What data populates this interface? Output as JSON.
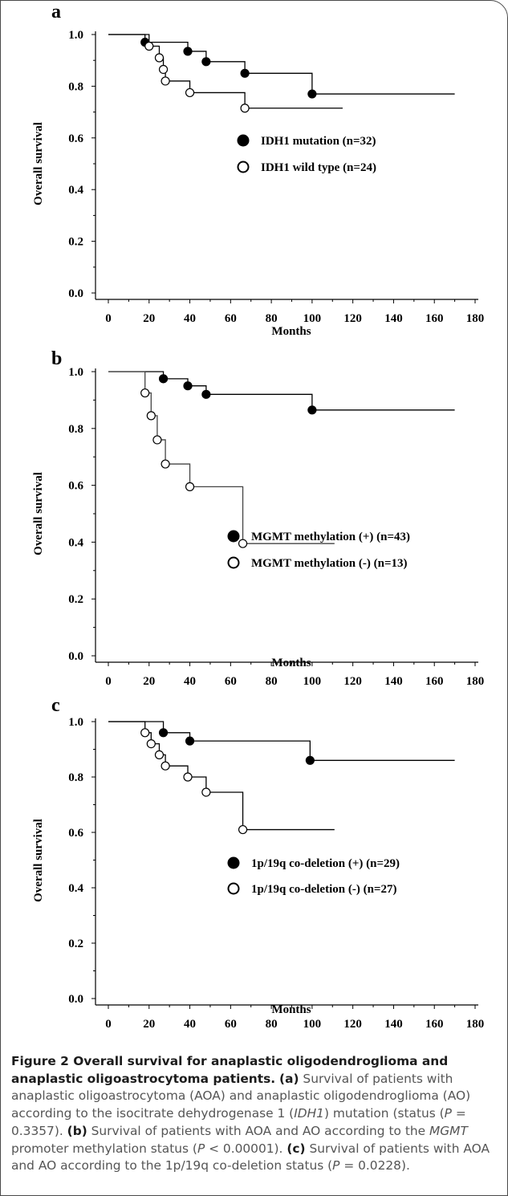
{
  "figure": {
    "panels": [
      {
        "letter": "a",
        "legend": [
          "IDH1 mutation (n=32)",
          "IDH1 wild type (n=24)"
        ]
      },
      {
        "letter": "b",
        "legend": [
          "MGMT methylation (+) (n=43)",
          "MGMT methylation (-) (n=13)"
        ]
      },
      {
        "letter": "c",
        "legend": [
          "1p/19q co-deletion (+) (n=29)",
          "1p/19q co-deletion (-) (n=27)"
        ]
      }
    ],
    "caption": {
      "title": "Figure 2 Overall survival for anaplastic oligodendroglioma and anaplastic oligoastrocytoma patients.",
      "a_label": "(a)",
      "a_text_1": "Survival of patients with anaplastic oligoastrocytoma (AOA) and anaplastic oligodendroglioma (AO) according to the isocitrate dehydrogenase 1 (",
      "a_gene": "IDH1",
      "a_text_2": ") mutation (status (",
      "a_p": "P",
      "a_text_3": " = 0.3357).",
      "b_label": "(b)",
      "b_text_1": "Survival of patients with AOA and AO according to the ",
      "b_gene": "MGMT",
      "b_text_2": " promoter methylation status (",
      "b_p": "P",
      "b_text_3": " < 0.00001).",
      "c_label": "(c)",
      "c_text_1": "Survival of patients with AOA and AO according to the 1p/19q co-deletion status (",
      "c_p": "P",
      "c_text_2": " = 0.0228)."
    }
  },
  "chart_data": [
    {
      "type": "line",
      "panel": "a",
      "step": true,
      "xlabel": "Months",
      "ylabel": "Overall survival",
      "xlim": [
        0,
        180
      ],
      "ylim": [
        0,
        1.0
      ],
      "xticks": [
        "0",
        "20",
        "40",
        "60",
        "80",
        "100",
        "120",
        "140",
        "160",
        "180"
      ],
      "yticks": [
        "0.0",
        "0.2",
        "0.4",
        "0.6",
        "0.8",
        "1.0"
      ],
      "grid": false,
      "legend_position": "right",
      "series": [
        {
          "name": "IDH1 mutation (n=32)",
          "marker": "filled-circle",
          "color": "#000000",
          "steps": [
            [
              0,
              1.0
            ],
            [
              18,
              0.97
            ],
            [
              39,
              0.935
            ],
            [
              48,
              0.895
            ],
            [
              67,
              0.85
            ],
            [
              100,
              0.77
            ]
          ],
          "end_x": 170,
          "markers": [
            [
              18,
              0.97
            ],
            [
              39,
              0.935
            ],
            [
              48,
              0.895
            ],
            [
              67,
              0.85
            ],
            [
              100,
              0.77
            ]
          ]
        },
        {
          "name": "IDH1 wild type (n=24)",
          "marker": "open-circle",
          "color": "#000000",
          "steps": [
            [
              0,
              1.0
            ],
            [
              20,
              0.955
            ],
            [
              25,
              0.91
            ],
            [
              27,
              0.865
            ],
            [
              28,
              0.82
            ],
            [
              40,
              0.775
            ],
            [
              67,
              0.715
            ]
          ],
          "end_x": 115,
          "markers": [
            [
              20,
              0.955
            ],
            [
              25,
              0.91
            ],
            [
              27,
              0.865
            ],
            [
              28,
              0.82
            ],
            [
              40,
              0.775
            ],
            [
              67,
              0.715
            ]
          ]
        }
      ]
    },
    {
      "type": "line",
      "panel": "b",
      "step": true,
      "xlabel": "Months",
      "ylabel": "Overall survival",
      "xlim": [
        0,
        180
      ],
      "ylim": [
        0,
        1.0
      ],
      "xticks": [
        "0",
        "20",
        "40",
        "60",
        "80",
        "100",
        "120",
        "140",
        "160",
        "180"
      ],
      "yticks": [
        "0.0",
        "0.2",
        "0.4",
        "0.6",
        "0.8",
        "1.0"
      ],
      "grid": false,
      "legend_position": "bottom-right",
      "series": [
        {
          "name": "MGMT methylation (+) (n=43)",
          "marker": "filled-circle",
          "color": "#000000",
          "steps": [
            [
              0,
              1.0
            ],
            [
              27,
              0.975
            ],
            [
              39,
              0.95
            ],
            [
              48,
              0.92
            ],
            [
              100,
              0.865
            ]
          ],
          "end_x": 170,
          "markers": [
            [
              27,
              0.975
            ],
            [
              39,
              0.95
            ],
            [
              48,
              0.92
            ],
            [
              100,
              0.865
            ]
          ]
        },
        {
          "name": "MGMT methylation (-) (n=13)",
          "marker": "open-circle",
          "color": "#444444",
          "steps": [
            [
              0,
              1.0
            ],
            [
              18,
              0.925
            ],
            [
              21,
              0.845
            ],
            [
              24,
              0.76
            ],
            [
              28,
              0.675
            ],
            [
              40,
              0.595
            ],
            [
              66,
              0.395
            ]
          ],
          "end_x": 111,
          "markers": [
            [
              18,
              0.925
            ],
            [
              21,
              0.845
            ],
            [
              24,
              0.76
            ],
            [
              28,
              0.675
            ],
            [
              40,
              0.595
            ],
            [
              66,
              0.395
            ]
          ]
        }
      ]
    },
    {
      "type": "line",
      "panel": "c",
      "step": true,
      "xlabel": "Months",
      "ylabel": "Overall survival",
      "xlim": [
        0,
        180
      ],
      "ylim": [
        0,
        1.0
      ],
      "xticks": [
        "0",
        "20",
        "40",
        "60",
        "80",
        "100",
        "120",
        "140",
        "160",
        "180"
      ],
      "yticks": [
        "0.0",
        "0.2",
        "0.4",
        "0.6",
        "0.8",
        "1.0"
      ],
      "grid": false,
      "legend_position": "bottom-right",
      "series": [
        {
          "name": "1p/19q co-deletion (+) (n=29)",
          "marker": "filled-circle",
          "color": "#000000",
          "steps": [
            [
              0,
              1.0
            ],
            [
              27,
              0.96
            ],
            [
              40,
              0.93
            ],
            [
              99,
              0.86
            ]
          ],
          "end_x": 170,
          "markers": [
            [
              27,
              0.96
            ],
            [
              40,
              0.93
            ],
            [
              99,
              0.86
            ]
          ]
        },
        {
          "name": "1p/19q co-deletion (-) (n=27)",
          "marker": "open-circle",
          "color": "#000000",
          "steps": [
            [
              0,
              1.0
            ],
            [
              18,
              0.96
            ],
            [
              21,
              0.92
            ],
            [
              25,
              0.88
            ],
            [
              28,
              0.84
            ],
            [
              39,
              0.8
            ],
            [
              48,
              0.745
            ],
            [
              66,
              0.61
            ]
          ],
          "end_x": 111,
          "markers": [
            [
              18,
              0.96
            ],
            [
              21,
              0.92
            ],
            [
              25,
              0.88
            ],
            [
              28,
              0.84
            ],
            [
              39,
              0.8
            ],
            [
              48,
              0.745
            ],
            [
              66,
              0.61
            ]
          ]
        }
      ]
    }
  ]
}
